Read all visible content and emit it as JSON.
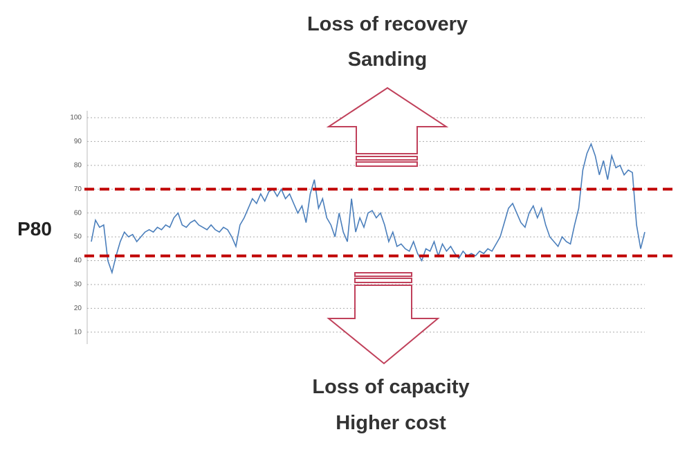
{
  "chart_data": {
    "type": "line",
    "ylabel": "P80",
    "annotations": [
      "Loss of recovery",
      "Sanding",
      "Loss of capacity",
      "Higher cost"
    ],
    "ylim": [
      5,
      100
    ],
    "yticks": [
      10,
      20,
      30,
      40,
      50,
      60,
      70,
      80,
      90,
      100
    ],
    "grid": true,
    "reference_lines": [
      70,
      42
    ],
    "reference_color": "#c00000",
    "series": [
      {
        "color": "#4a7ebb",
        "values": [
          48,
          57,
          54,
          55,
          40,
          35,
          42,
          48,
          52,
          50,
          51,
          48,
          50,
          52,
          53,
          52,
          54,
          53,
          55,
          54,
          58,
          60,
          55,
          54,
          56,
          57,
          55,
          54,
          53,
          55,
          53,
          52,
          54,
          53,
          50,
          46,
          55,
          58,
          62,
          66,
          64,
          68,
          65,
          69,
          70,
          67,
          70,
          66,
          68,
          64,
          60,
          63,
          56,
          68,
          74,
          62,
          66,
          58,
          55,
          50,
          60,
          52,
          48,
          66,
          52,
          58,
          54,
          60,
          61,
          58,
          60,
          55,
          48,
          52,
          46,
          47,
          45,
          44,
          48,
          43,
          40,
          45,
          44,
          48,
          42,
          47,
          44,
          46,
          43,
          41,
          44,
          42,
          43,
          42,
          44,
          43,
          45,
          44,
          47,
          50,
          56,
          62,
          64,
          60,
          56,
          54,
          60,
          63,
          58,
          62,
          55,
          50,
          48,
          46,
          50,
          48,
          47,
          55,
          62,
          78,
          85,
          89,
          84,
          76,
          82,
          74,
          84,
          79,
          80,
          76,
          78,
          77,
          55,
          45,
          52
        ]
      }
    ]
  }
}
